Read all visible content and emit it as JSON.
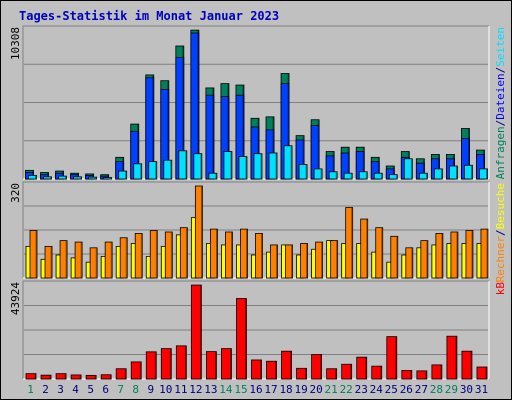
{
  "chart_data": [
    {
      "type": "bar",
      "title": "Tages-Statistik im Monat Januar 2023",
      "panel": "anfragen",
      "ymax_label": "10308",
      "ylim": [
        0,
        10308
      ],
      "categories": [
        "1",
        "2",
        "3",
        "4",
        "5",
        "6",
        "7",
        "8",
        "9",
        "10",
        "11",
        "12",
        "13",
        "14",
        "15",
        "16",
        "17",
        "18",
        "19",
        "20",
        "21",
        "22",
        "23",
        "24",
        "25",
        "26",
        "27",
        "28",
        "29",
        "30",
        "31"
      ],
      "weekend_days": [
        "1",
        "7",
        "8",
        "14",
        "15",
        "21",
        "22",
        "28",
        "29"
      ],
      "legend": [
        {
          "text": "Anfragen",
          "color": "#008060"
        },
        {
          "text": "/",
          "color": "#000080"
        },
        {
          "text": "Dateien",
          "color": "#0000ff"
        },
        {
          "text": "/",
          "color": "#000080"
        },
        {
          "text": "Seiten",
          "color": "#00e0ff"
        }
      ],
      "series": [
        {
          "name": "Anfragen",
          "color": "#00805c",
          "values": [
            600,
            450,
            550,
            400,
            350,
            300,
            1500,
            3800,
            7200,
            6800,
            9200,
            10300,
            6300,
            6600,
            6500,
            4200,
            4300,
            7300,
            3000,
            4100,
            1900,
            2200,
            2200,
            1500,
            900,
            1900,
            1400,
            1700,
            1700,
            3500,
            2000
          ]
        },
        {
          "name": "Dateien",
          "color": "#0040ff",
          "values": [
            450,
            300,
            400,
            300,
            250,
            200,
            1200,
            3300,
            7000,
            6200,
            8400,
            10100,
            5800,
            5700,
            5800,
            3600,
            3400,
            6600,
            2700,
            3700,
            1600,
            1800,
            1900,
            1200,
            700,
            1500,
            1100,
            1400,
            1400,
            2800,
            1700
          ]
        },
        {
          "name": "Seiten",
          "color": "#00e0ff",
          "values": [
            250,
            150,
            200,
            150,
            130,
            100,
            550,
            1050,
            1200,
            1300,
            1950,
            1750,
            400,
            1900,
            1550,
            1750,
            1800,
            2300,
            1000,
            700,
            500,
            400,
            500,
            400,
            300,
            1400,
            400,
            700,
            900,
            950,
            700
          ]
        }
      ]
    },
    {
      "type": "bar",
      "panel": "besuche",
      "ymax_label": "320",
      "ylim": [
        0,
        320
      ],
      "legend": [
        {
          "text": "Rechner",
          "color": "#ff8000"
        },
        {
          "text": "/",
          "color": "#000080"
        },
        {
          "text": "Besuche",
          "color": "#ffff00"
        }
      ],
      "series": [
        {
          "name": "Besuche",
          "color": "#ffff00",
          "values": [
            110,
            65,
            80,
            70,
            55,
            75,
            110,
            120,
            75,
            110,
            150,
            210,
            120,
            115,
            115,
            80,
            90,
            115,
            80,
            100,
            130,
            120,
            120,
            90,
            55,
            80,
            105,
            115,
            120,
            120,
            120
          ]
        },
        {
          "name": "Rechner",
          "color": "#ff8000",
          "values": [
            165,
            110,
            130,
            125,
            105,
            125,
            140,
            155,
            165,
            160,
            175,
            320,
            170,
            160,
            170,
            155,
            115,
            115,
            120,
            125,
            130,
            245,
            205,
            175,
            145,
            105,
            130,
            155,
            160,
            165,
            170
          ]
        }
      ]
    },
    {
      "type": "bar",
      "panel": "kb",
      "ymax_label": "43924",
      "ylim": [
        0,
        43924
      ],
      "legend": [
        {
          "text": "kB",
          "color": "#ff0000"
        }
      ],
      "series": [
        {
          "name": "kB",
          "color": "#ff0000",
          "values": [
            2500,
            1800,
            2500,
            1900,
            1700,
            2000,
            4800,
            8000,
            12700,
            14200,
            15500,
            43900,
            12800,
            14200,
            37600,
            8900,
            8300,
            13000,
            5000,
            11400,
            4800,
            6900,
            10200,
            6000,
            19800,
            4000,
            3800,
            6600,
            20000,
            13000,
            5600
          ]
        }
      ]
    }
  ]
}
